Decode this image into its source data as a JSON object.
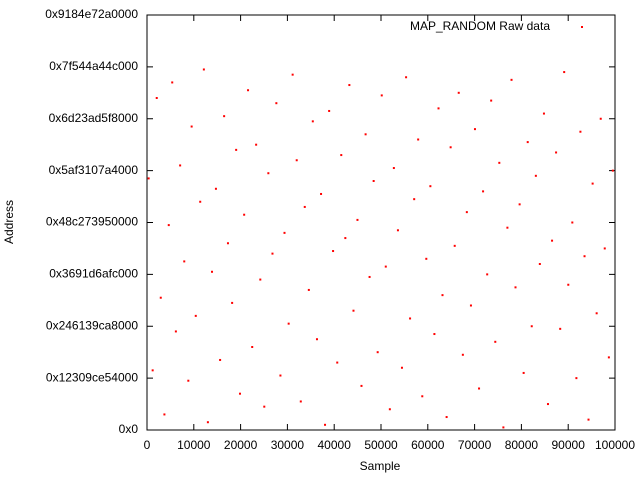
{
  "chart_data": {
    "type": "scatter",
    "x_label": "Sample",
    "y_label": "Address",
    "xlim": [
      0,
      100000
    ],
    "ylim": [
      0,
      160000000000000
    ],
    "xticks": [
      0,
      10000,
      20000,
      30000,
      40000,
      50000,
      60000,
      70000,
      80000,
      90000,
      100000
    ],
    "yticks": [
      {
        "value": 0,
        "label": "0x0"
      },
      {
        "value": 20000000000000,
        "label": "0x12309ce54000"
      },
      {
        "value": 40000000000000,
        "label": "0x246139ca8000"
      },
      {
        "value": 60000000000000,
        "label": "0x3691d6afc000"
      },
      {
        "value": 80000000000000,
        "label": "0x48c273950000"
      },
      {
        "value": 100000000000000,
        "label": "0x5af3107a4000"
      },
      {
        "value": 120000000000000,
        "label": "0x6d23ad5f8000"
      },
      {
        "value": 140000000000000,
        "label": "0x7f544a44c000"
      },
      {
        "value": 160000000000000,
        "label": "0x9184e72a0000"
      }
    ],
    "legend": "top-right",
    "series": [
      {
        "name": "MAP_RANDOM Raw data",
        "color": "#ff0000",
        "x": [
          350,
          1210,
          2080,
          2940,
          3720,
          4650,
          5390,
          6170,
          7080,
          7960,
          8830,
          9540,
          10420,
          11370,
          12150,
          13010,
          13890,
          14730,
          15620,
          16480,
          17300,
          18190,
          19050,
          19870,
          20760,
          21590,
          22480,
          23320,
          24210,
          25060,
          25930,
          26810,
          27640,
          28510,
          29380,
          30270,
          31120,
          31990,
          32860,
          33710,
          34580,
          35430,
          36320,
          37190,
          38040,
          38920,
          39760,
          40650,
          41510,
          42380,
          43240,
          44120,
          44970,
          45830,
          46710,
          47560,
          48430,
          49290,
          50160,
          51020,
          51890,
          52750,
          53620,
          54480,
          55360,
          56210,
          57090,
          57940,
          58820,
          59680,
          60550,
          61410,
          62290,
          63140,
          64020,
          64880,
          65750,
          66610,
          67490,
          68340,
          69220,
          70080,
          70950,
          71810,
          72690,
          73540,
          74420,
          75280,
          76150,
          77010,
          77890,
          78740,
          79620,
          80480,
          81350,
          82210,
          83090,
          83940,
          84820,
          85680,
          86550,
          87410,
          88290,
          89140,
          90020,
          90880,
          91750,
          92610,
          93490,
          94340,
          95220,
          96080,
          96950,
          97810,
          98690,
          99540
        ],
        "values": [
          97000000000000.0,
          23000000000000.0,
          128000000000000.0,
          51000000000000.0,
          6000000000000.0,
          79000000000000.0,
          134000000000000.0,
          38000000000000.0,
          102000000000000.0,
          65000000000000.0,
          19000000000000.0,
          117000000000000.0,
          44000000000000.0,
          88000000000000.0,
          139000000000000.0,
          3000000000000.0,
          61000000000000.0,
          93000000000000.0,
          27000000000000.0,
          121000000000000.0,
          72000000000000.0,
          49000000000000.0,
          108000000000000.0,
          14000000000000.0,
          83000000000000.0,
          131000000000000.0,
          32000000000000.0,
          110000000000000.0,
          58000000000000.0,
          9000000000000.0,
          99000000000000.0,
          68000000000000.0,
          126000000000000.0,
          21000000000000.0,
          76000000000000.0,
          41000000000000.0,
          137000000000000.0,
          104000000000000.0,
          11000000000000.0,
          86000000000000.0,
          54000000000000.0,
          119000000000000.0,
          35000000000000.0,
          91000000000000.0,
          2000000000000.0,
          123000000000000.0,
          69000000000000.0,
          26000000000000.0,
          106000000000000.0,
          74000000000000.0,
          133000000000000.0,
          46000000000000.0,
          81000000000000.0,
          17000000000000.0,
          114000000000000.0,
          59000000000000.0,
          96000000000000.0,
          30000000000000.0,
          129000000000000.0,
          63000000000000.0,
          8000000000000.0,
          101000000000000.0,
          77000000000000.0,
          24000000000000.0,
          136000000000000.0,
          43000000000000.0,
          89000000000000.0,
          112000000000000.0,
          13000000000000.0,
          66000000000000.0,
          94000000000000.0,
          37000000000000.0,
          124000000000000.0,
          52000000000000.0,
          5000000000000.0,
          109000000000000.0,
          71000000000000.0,
          130000000000000.0,
          29000000000000.0,
          84000000000000.0,
          48000000000000.0,
          116000000000000.0,
          16000000000000.0,
          92000000000000.0,
          60000000000000.0,
          127000000000000.0,
          34000000000000.0,
          103000000000000.0,
          1000000000000.0,
          78000000000000.0,
          135000000000000.0,
          55000000000000.0,
          87000000000000.0,
          22000000000000.0,
          111000000000000.0,
          40000000000000.0,
          98000000000000.0,
          64000000000000.0,
          122000000000000.0,
          10000000000000.0,
          73000000000000.0,
          107000000000000.0,
          39000000000000.0,
          138000000000000.0,
          56000000000000.0,
          80000000000000.0,
          20000000000000.0,
          115000000000000.0,
          67000000000000.0,
          4000000000000.0,
          95000000000000.0,
          45000000000000.0,
          120000000000000.0,
          70000000000000.0,
          28000000000000.0,
          100000000000000.0
        ]
      }
    ]
  }
}
